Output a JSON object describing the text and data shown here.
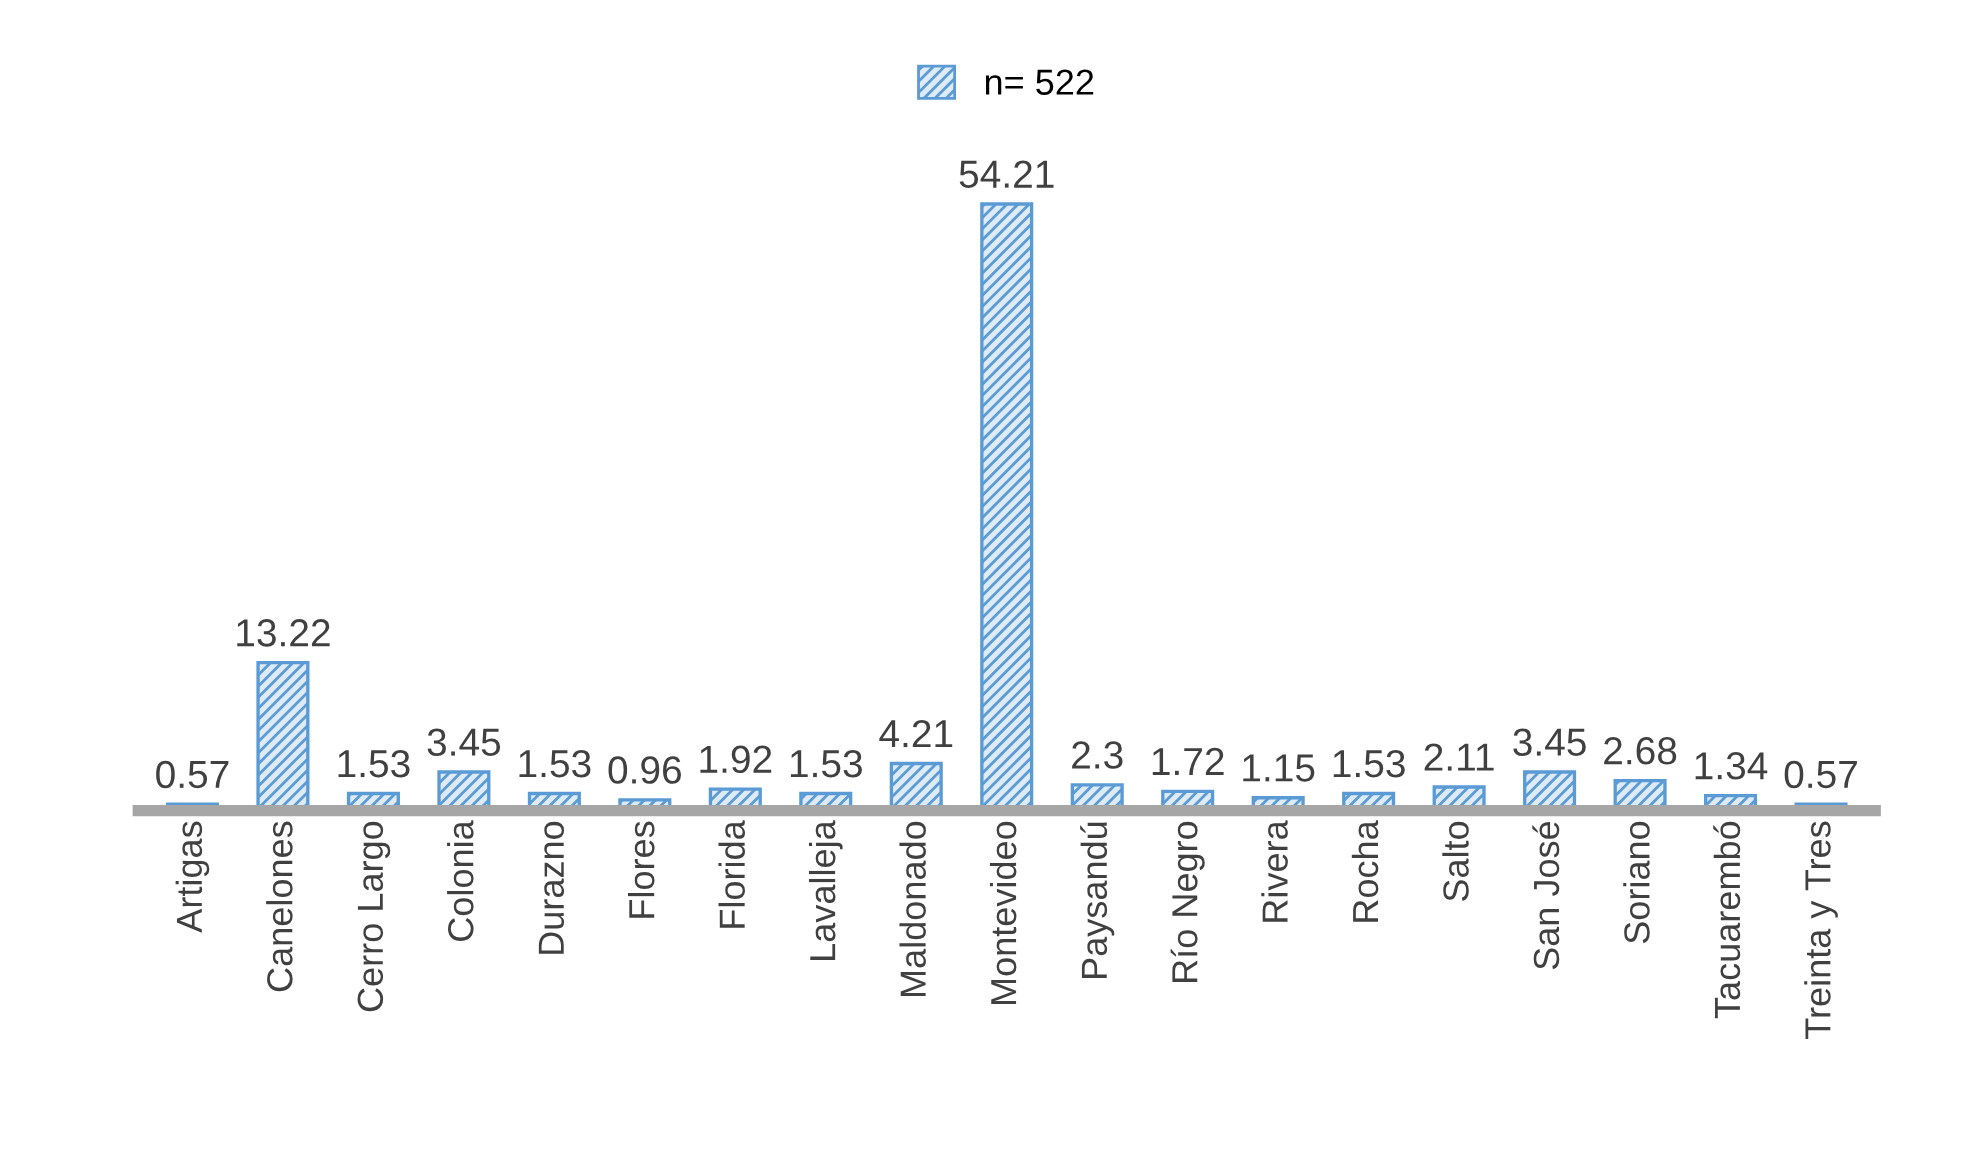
{
  "chart_data": {
    "type": "bar",
    "categories": [
      "Artigas",
      "Canelones",
      "Cerro Largo",
      "Colonia",
      "Durazno",
      "Flores",
      "Florida",
      "Lavalleja",
      "Maldonado",
      "Montevideo",
      "Paysandú",
      "Río Negro",
      "Rivera",
      "Rocha",
      "Salto",
      "San José",
      "Soriano",
      "Tacuarembó",
      "Treinta y Tres"
    ],
    "series": [
      {
        "name": "n= 522",
        "color": "#5b9bd5",
        "values": [
          0.57,
          13.22,
          1.53,
          3.45,
          1.53,
          0.96,
          1.92,
          1.53,
          4.21,
          54.21,
          2.3,
          1.72,
          1.15,
          1.53,
          2.11,
          3.45,
          2.68,
          1.34,
          0.57
        ]
      }
    ],
    "data_labels": true,
    "legend": "top",
    "grid": false
  }
}
